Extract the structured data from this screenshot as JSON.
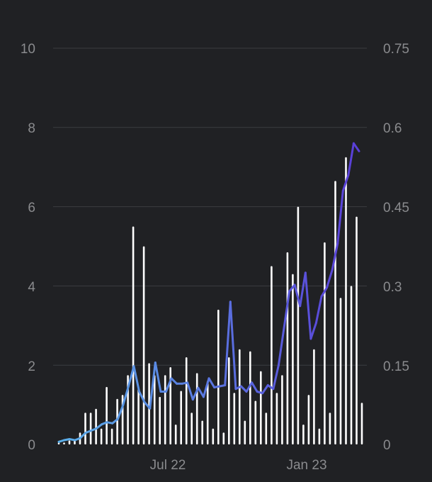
{
  "chart_data": {
    "type": "bar",
    "title": "",
    "xlabel": "",
    "ylabel": "",
    "x_tick_labels": [
      "Jul 22",
      "Jan 23"
    ],
    "y_left": {
      "ylim": [
        0,
        10
      ],
      "ticks": [
        0,
        2,
        4,
        6,
        8,
        10
      ],
      "tick_labels": [
        "0",
        "2",
        "4",
        "6",
        "8",
        "10"
      ]
    },
    "y_right": {
      "ylim": [
        0,
        0.75
      ],
      "ticks": [
        0,
        0.15,
        0.3,
        0.45,
        0.6,
        0.75
      ],
      "tick_labels": [
        "0",
        "0.15",
        "0.3",
        "0.45",
        "0.6",
        "0.75"
      ]
    },
    "grid": true,
    "colors": {
      "background": "#202124",
      "bars": "#ffffff",
      "grid": "#3b3d41",
      "tick_text": "#8a8b8e",
      "line_start": "#5aaee8",
      "line_end": "#5a3fd8"
    },
    "series": [
      {
        "type": "bar",
        "axis": "left",
        "values": [
          0.05,
          0.05,
          0.1,
          0.1,
          0.3,
          0.8,
          0.8,
          0.9,
          0.4,
          1.45,
          0.4,
          1.15,
          1.25,
          1.75,
          5.5,
          1.4,
          5.0,
          2.05,
          1.75,
          1.2,
          1.75,
          1.95,
          0.5,
          1.35,
          2.2,
          0.8,
          1.8,
          0.6,
          1.6,
          0.4,
          3.4,
          0.3,
          2.2,
          1.3,
          2.4,
          0.6,
          2.35,
          1.1,
          1.85,
          0.8,
          4.5,
          1.3,
          1.75,
          4.85,
          4.3,
          6.0,
          0.5,
          1.25,
          2.4,
          0.4,
          5.1,
          0.8,
          6.65,
          3.7,
          7.25,
          4.0,
          5.75,
          1.05
        ]
      },
      {
        "type": "line",
        "axis": "right",
        "values": [
          0.005,
          0.008,
          0.01,
          0.008,
          0.012,
          0.022,
          0.026,
          0.03,
          0.038,
          0.042,
          0.04,
          0.048,
          0.075,
          0.11,
          0.148,
          0.1,
          0.08,
          0.068,
          0.155,
          0.1,
          0.1,
          0.125,
          0.115,
          0.115,
          0.117,
          0.085,
          0.107,
          0.09,
          0.125,
          0.108,
          0.11,
          0.112,
          0.27,
          0.105,
          0.11,
          0.1,
          0.117,
          0.1,
          0.097,
          0.112,
          0.105,
          0.15,
          0.22,
          0.29,
          0.302,
          0.262,
          0.325,
          0.2,
          0.23,
          0.28,
          0.297,
          0.33,
          0.38,
          0.48,
          0.51,
          0.57,
          0.555
        ]
      }
    ]
  }
}
